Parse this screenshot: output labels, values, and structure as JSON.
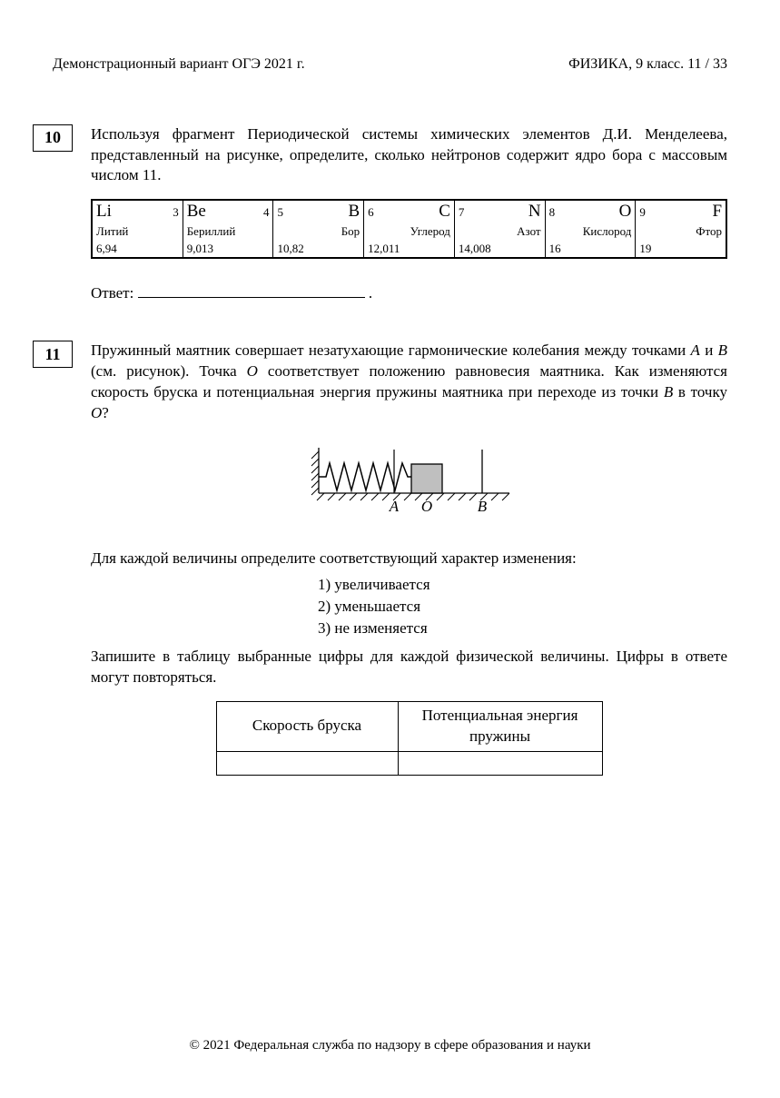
{
  "header": {
    "left": "Демонстрационный вариант ОГЭ 2021 г.",
    "right": "ФИЗИКА, 9 класс.    11 / 33"
  },
  "q10": {
    "number": "10",
    "text": "Используя фрагмент Периодической системы химических элементов Д.И. Менделеева, представленный на рисунке, определите, сколько нейтронов содержит ядро бора с массовым числом 11.",
    "answer_label": "Ответ:",
    "periodic": {
      "border_color": "#000000",
      "cells": [
        {
          "symbol": "Li",
          "number": "3",
          "name": "Литий",
          "mass": "6,94",
          "reversed": false
        },
        {
          "symbol": "Be",
          "number": "4",
          "name": "Бериллий",
          "mass": "9,013",
          "reversed": false
        },
        {
          "symbol": "B",
          "number": "5",
          "name": "Бор",
          "mass": "10,82",
          "reversed": true
        },
        {
          "symbol": "C",
          "number": "6",
          "name": "Углерод",
          "mass": "12,011",
          "reversed": true
        },
        {
          "symbol": "N",
          "number": "7",
          "name": "Азот",
          "mass": "14,008",
          "reversed": true
        },
        {
          "symbol": "O",
          "number": "8",
          "name": "Кислород",
          "mass": "16",
          "reversed": true
        },
        {
          "symbol": "F",
          "number": "9",
          "name": "Фтор",
          "mass": "19",
          "reversed": true
        }
      ]
    }
  },
  "q11": {
    "number": "11",
    "text_parts": {
      "p1": "Пружинный маятник совершает незатухающие гармонические колебания между точками ",
      "A": "A",
      "and": " и ",
      "B": "B",
      "p2": " (см. рисунок). Точка ",
      "O": "O",
      "p3": " соответствует положению равновесия маятника. Как изменяются скорость бруска и потенциальная энергия пружины маятника при переходе из точки ",
      "B2": "B",
      "to": " в точку ",
      "O2": "O",
      "p4": "?"
    },
    "diagram": {
      "labels": {
        "A": "A",
        "O": "O",
        "B": "B"
      },
      "colors": {
        "stroke": "#000000",
        "block_fill": "#bfbfbf",
        "hatch": "#000000"
      }
    },
    "instruction": "Для каждой величины определите соответствующий характер изменения:",
    "options": [
      "1)   увеличивается",
      "2)   уменьшается",
      "3)   не изменяется"
    ],
    "instruction2": "Запишите в таблицу выбранные цифры для каждой физической величины. Цифры в ответе могут повторяться.",
    "table": {
      "col1": "Скорость бруска",
      "col2": "Потенциальная энергия пружины"
    }
  },
  "footer": "© 2021 Федеральная служба по надзору в сфере образования и науки"
}
